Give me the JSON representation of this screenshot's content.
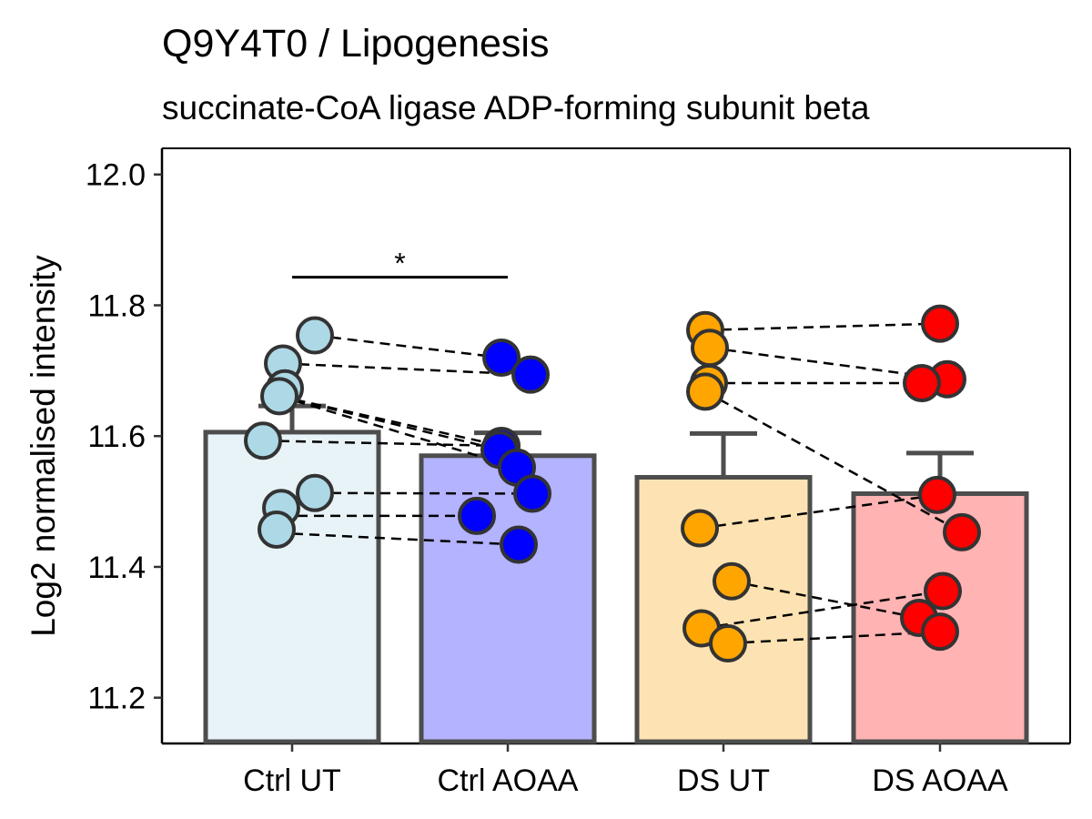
{
  "chart_data": {
    "type": "bar",
    "title": "Q9Y4T0 / Lipogenesis",
    "subtitle": "succinate-CoA ligase ADP-forming subunit beta",
    "xlabel": "",
    "ylabel": "Log2 normalised intensity",
    "ylim": [
      11.13,
      12.04
    ],
    "yticks": [
      "11.2",
      "11.4",
      "11.6",
      "11.8",
      "12.0"
    ],
    "ytick_values": [
      11.2,
      11.4,
      11.6,
      11.8,
      12.0
    ],
    "grid": false,
    "legend": "none",
    "categories": [
      "Ctrl UT",
      "Ctrl AOAA",
      "DS UT",
      "DS AOAA"
    ],
    "bar_outline_color": "#4d4d4d",
    "bar_fill_colors": [
      "#e8f3f8",
      "#b3b3ff",
      "#fde3b3",
      "#ffb3b3"
    ],
    "point_colors": [
      "#add8e6",
      "#0000ff",
      "#ffa500",
      "#ff0000"
    ],
    "values": [
      11.606,
      11.57,
      11.537,
      11.512
    ],
    "error_upper": [
      11.646,
      11.605,
      11.604,
      11.574
    ],
    "points": [
      [
        11.754,
        11.711,
        11.673,
        11.661,
        11.593,
        11.513,
        11.49,
        11.457
      ],
      [
        11.72,
        11.694,
        11.585,
        11.579,
        11.552,
        11.512,
        11.478,
        11.434
      ],
      [
        11.762,
        11.735,
        11.681,
        11.668,
        11.459,
        11.378,
        11.306,
        11.283
      ],
      [
        11.772,
        11.687,
        11.681,
        11.51,
        11.453,
        11.363,
        11.322,
        11.301
      ]
    ],
    "paired_lines": [
      {
        "from": [
          0,
          11.754
        ],
        "to": [
          1,
          11.72
        ]
      },
      {
        "from": [
          0,
          11.711
        ],
        "to": [
          1,
          11.694
        ]
      },
      {
        "from": [
          0,
          11.661
        ],
        "to": [
          1,
          11.585
        ]
      },
      {
        "from": [
          0,
          11.661
        ],
        "to": [
          1,
          11.579
        ]
      },
      {
        "from": [
          0,
          11.661
        ],
        "to": [
          1,
          11.552
        ]
      },
      {
        "from": [
          0,
          11.593
        ],
        "to": [
          1,
          11.585
        ]
      },
      {
        "from": [
          0,
          11.513
        ],
        "to": [
          1,
          11.512
        ]
      },
      {
        "from": [
          0,
          11.478
        ],
        "to": [
          1,
          11.478
        ]
      },
      {
        "from": [
          0,
          11.452
        ],
        "to": [
          1,
          11.434
        ]
      },
      {
        "from": [
          2,
          11.762
        ],
        "to": [
          3,
          11.772
        ]
      },
      {
        "from": [
          2,
          11.735
        ],
        "to": [
          3,
          11.687
        ]
      },
      {
        "from": [
          2,
          11.681
        ],
        "to": [
          3,
          11.681
        ]
      },
      {
        "from": [
          2,
          11.668
        ],
        "to": [
          3,
          11.453
        ]
      },
      {
        "from": [
          2,
          11.459
        ],
        "to": [
          3,
          11.51
        ]
      },
      {
        "from": [
          2,
          11.378
        ],
        "to": [
          3,
          11.322
        ]
      },
      {
        "from": [
          2,
          11.306
        ],
        "to": [
          3,
          11.363
        ]
      },
      {
        "from": [
          2,
          11.283
        ],
        "to": [
          3,
          11.301
        ]
      }
    ],
    "significance": [
      {
        "from": 0,
        "to": 1,
        "y": 11.843,
        "label": "*"
      }
    ]
  }
}
